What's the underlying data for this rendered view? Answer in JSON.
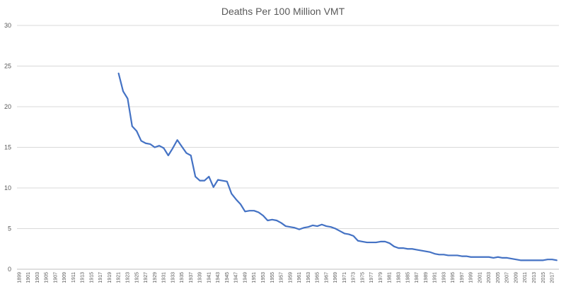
{
  "chart_data": {
    "type": "line",
    "title": "Deaths Per 100 Million VMT",
    "xlabel": "",
    "ylabel": "",
    "ylim": [
      0,
      30
    ],
    "yticks": [
      0,
      5,
      10,
      15,
      20,
      25,
      30
    ],
    "x_start": 1899,
    "x_end": 2018,
    "xtick_labels": [
      "1899",
      "1901",
      "1903",
      "1905",
      "1907",
      "1909",
      "1911",
      "1913",
      "1915",
      "1917",
      "1919",
      "1921",
      "1923",
      "1925",
      "1927",
      "1929",
      "1931",
      "1933",
      "1935",
      "1937",
      "1939",
      "1941",
      "1943",
      "1945",
      "1947",
      "1949",
      "1951",
      "1953",
      "1955",
      "1957",
      "1959",
      "1961",
      "1963",
      "1965",
      "1967",
      "1969",
      "1971",
      "1973",
      "1975",
      "1977",
      "1979",
      "1981",
      "1983",
      "1985",
      "1987",
      "1989",
      "1991",
      "1993",
      "1995",
      "1997",
      "1999",
      "2001",
      "2003",
      "2005",
      "2007",
      "2009",
      "2011",
      "2013",
      "2015",
      "2017"
    ],
    "grid": true,
    "legend": "none",
    "series": [
      {
        "name": "Deaths Per 100 Million VMT",
        "color": "#4472c4",
        "x": [
          1921,
          1922,
          1923,
          1924,
          1925,
          1926,
          1927,
          1928,
          1929,
          1930,
          1931,
          1932,
          1933,
          1934,
          1935,
          1936,
          1937,
          1938,
          1939,
          1940,
          1941,
          1942,
          1943,
          1944,
          1945,
          1946,
          1947,
          1948,
          1949,
          1950,
          1951,
          1952,
          1953,
          1954,
          1955,
          1956,
          1957,
          1958,
          1959,
          1960,
          1961,
          1962,
          1963,
          1964,
          1965,
          1966,
          1967,
          1968,
          1969,
          1970,
          1971,
          1972,
          1973,
          1974,
          1975,
          1976,
          1977,
          1978,
          1979,
          1980,
          1981,
          1982,
          1983,
          1984,
          1985,
          1986,
          1987,
          1988,
          1989,
          1990,
          1991,
          1992,
          1993,
          1994,
          1995,
          1996,
          1997,
          1998,
          1999,
          2000,
          2001,
          2002,
          2003,
          2004,
          2005,
          2006,
          2007,
          2008,
          2009,
          2010,
          2011,
          2012,
          2013,
          2014,
          2015,
          2016,
          2017,
          2018
        ],
        "values": [
          24.1,
          21.9,
          21.0,
          17.6,
          17.0,
          15.8,
          15.5,
          15.4,
          15.0,
          15.2,
          14.9,
          14.0,
          14.9,
          15.9,
          15.1,
          14.3,
          14.0,
          11.4,
          10.9,
          10.9,
          11.4,
          10.1,
          11.0,
          10.9,
          10.8,
          9.3,
          8.6,
          8.0,
          7.1,
          7.2,
          7.2,
          7.0,
          6.6,
          6.0,
          6.1,
          6.0,
          5.7,
          5.3,
          5.2,
          5.1,
          4.9,
          5.1,
          5.2,
          5.4,
          5.3,
          5.5,
          5.3,
          5.2,
          5.0,
          4.7,
          4.4,
          4.3,
          4.1,
          3.5,
          3.4,
          3.3,
          3.3,
          3.3,
          3.4,
          3.4,
          3.2,
          2.8,
          2.6,
          2.6,
          2.5,
          2.5,
          2.4,
          2.3,
          2.2,
          2.1,
          1.9,
          1.8,
          1.8,
          1.7,
          1.7,
          1.7,
          1.6,
          1.6,
          1.5,
          1.5,
          1.5,
          1.5,
          1.5,
          1.4,
          1.5,
          1.4,
          1.4,
          1.3,
          1.2,
          1.1,
          1.1,
          1.1,
          1.1,
          1.1,
          1.1,
          1.2,
          1.2,
          1.1
        ]
      }
    ]
  }
}
